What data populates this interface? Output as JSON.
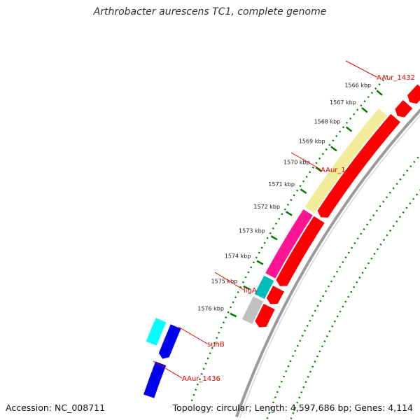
{
  "title": "Arthrobacter aurescens TC1, complete genome",
  "footer": {
    "accession": "Accession: NC_008711",
    "summary": "Topology: circular; Length: 4,597,686 bp; Genes: 4,114"
  },
  "ticks": [
    "1566 kbp",
    "1567 kbp",
    "1568 kbp",
    "1569 kbp",
    "1570 kbp",
    "1571 kbp",
    "1572 kbp",
    "1573 kbp",
    "1574 kbp",
    "1575 kbp",
    "1576 kbp"
  ],
  "gene_labels": [
    "AAur_1432",
    "AAur_1433",
    "ligA",
    "suhB",
    "AAur_1436"
  ],
  "colors": {
    "forward_cds": "#ff0000",
    "reverse_cds": "#0000ee",
    "hypothetical": "#f2ec9a",
    "ligA": "#ff1493",
    "suhB": "#00bcbc",
    "other": "#c0c0c0",
    "cyan": "#00ffff",
    "backbone": "#9a9a9a",
    "tick": "#007a00",
    "label_line": "#e00000"
  }
}
